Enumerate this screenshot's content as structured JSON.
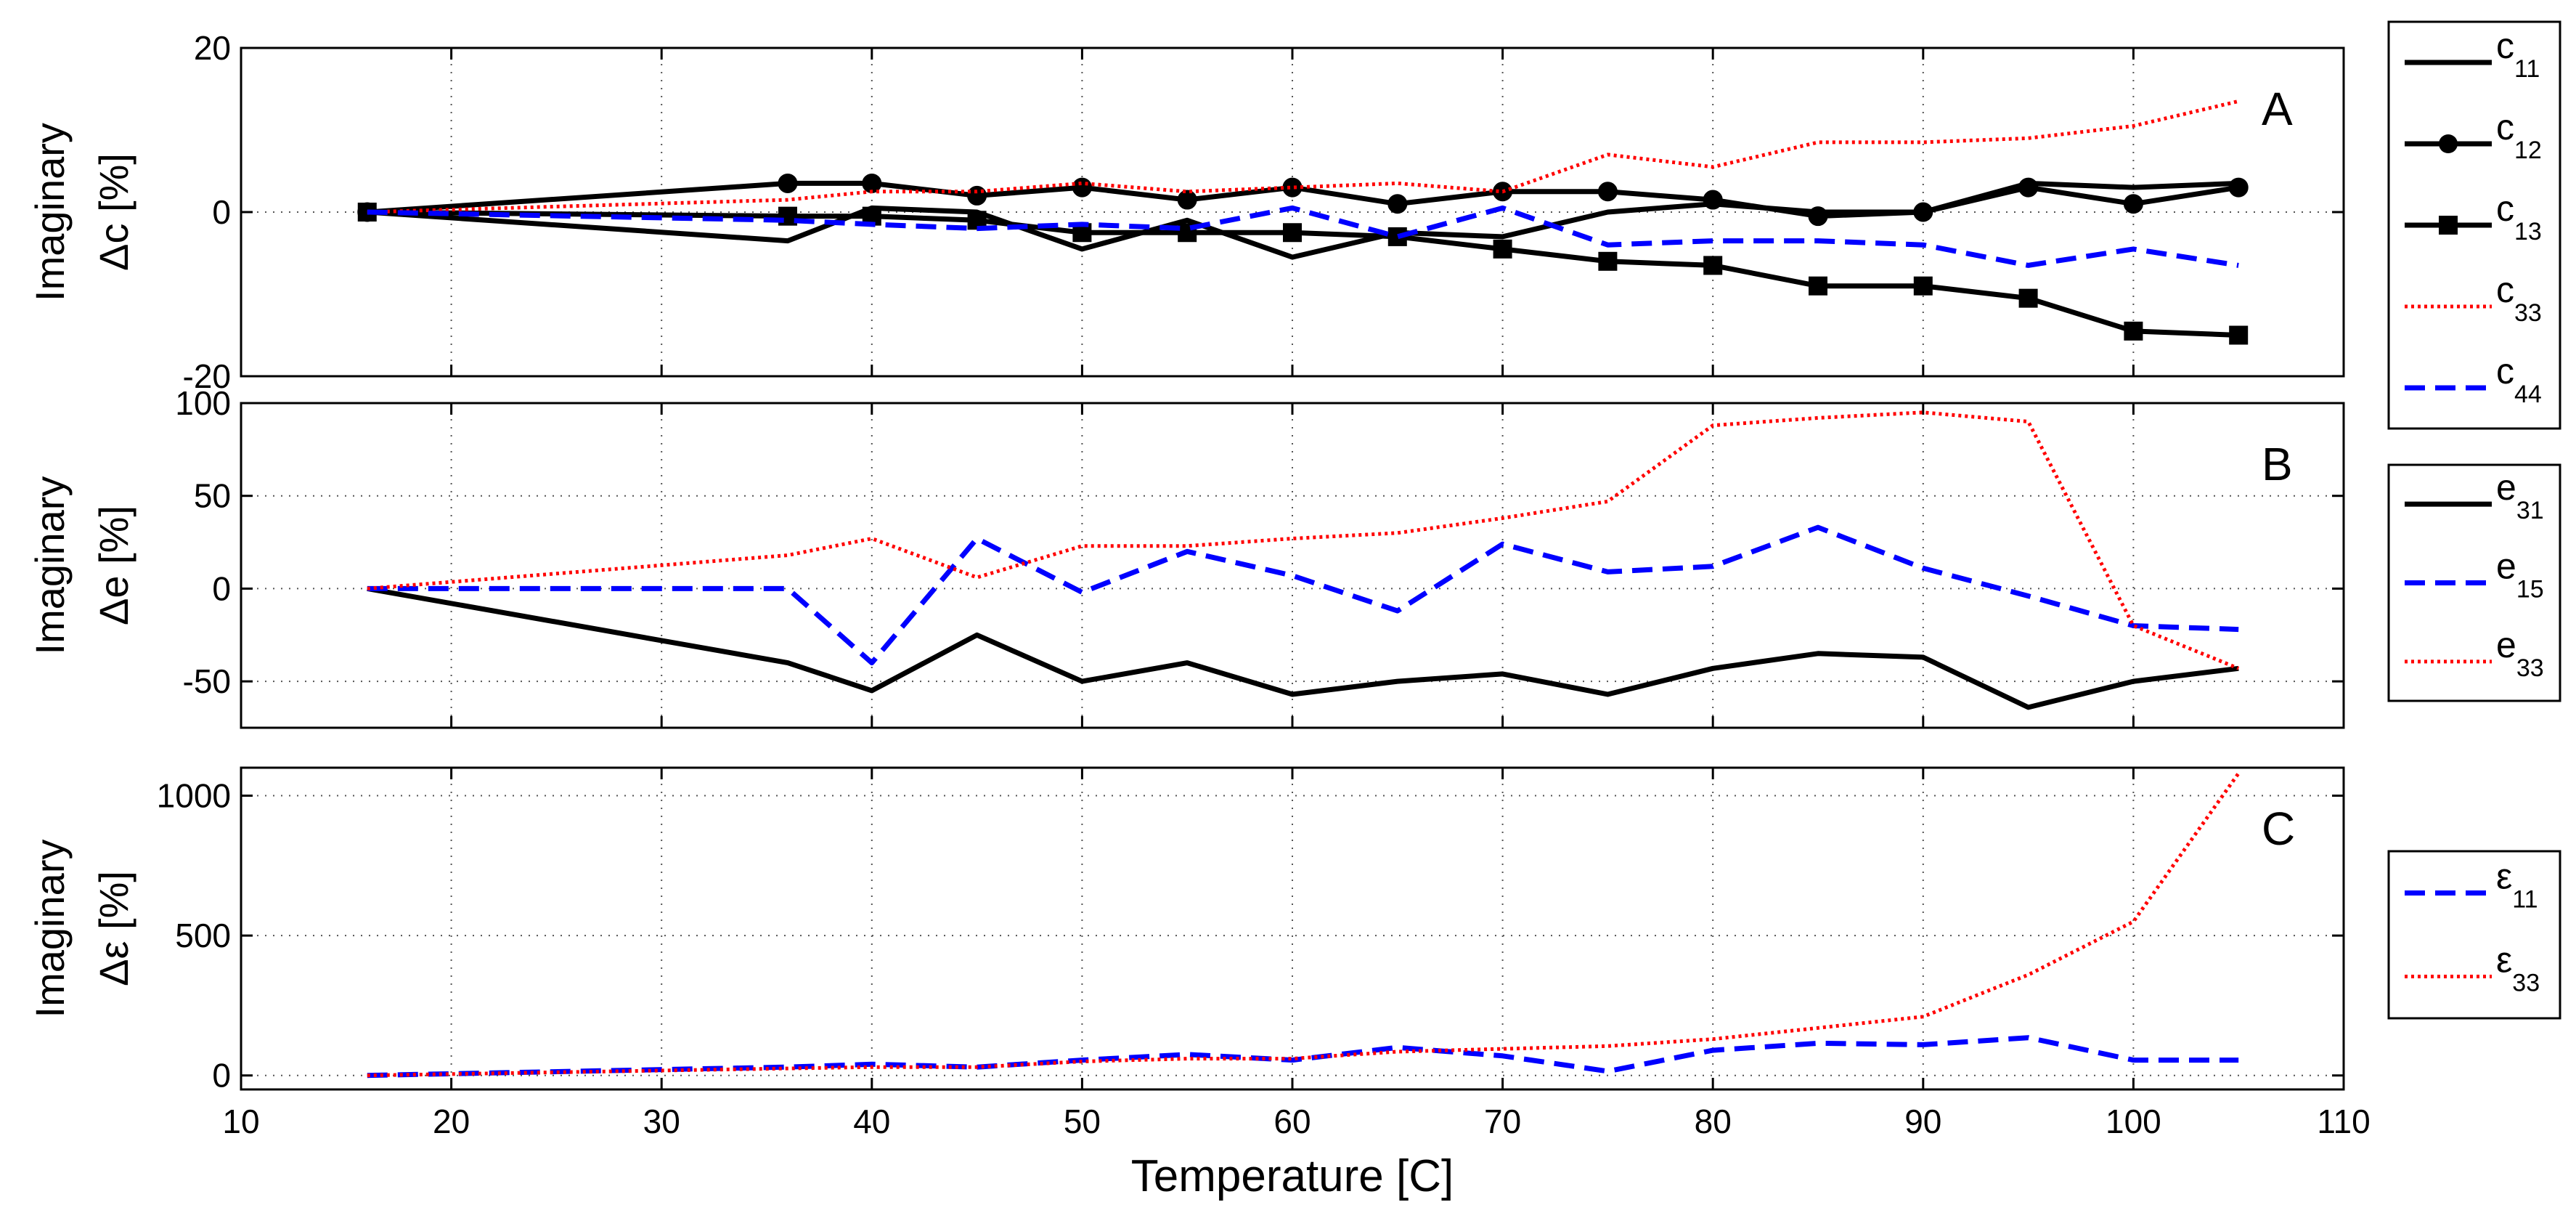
{
  "chart_data": [
    {
      "type": "line",
      "panel": "A",
      "ylabel_line1": "Imaginary",
      "ylabel_line2": "Δc [%]",
      "xlim": [
        10,
        110
      ],
      "ylim": [
        -20,
        20
      ],
      "yticks": [
        -20,
        0,
        20
      ],
      "legend": "outside-right",
      "grid": true,
      "series": [
        {
          "name": "c11",
          "base": "c",
          "sub": "11",
          "color": "#000000",
          "style": "solid",
          "marker": "none",
          "x": [
            16,
            36,
            40,
            45,
            50,
            55,
            60,
            65,
            70,
            75,
            80,
            85,
            90,
            95,
            100,
            105
          ],
          "y": [
            0,
            -3.5,
            0.5,
            0,
            -4.5,
            -1,
            -5.5,
            -2.5,
            -3,
            0,
            1,
            0,
            0,
            3.5,
            3,
            3.5
          ]
        },
        {
          "name": "c12",
          "base": "c",
          "sub": "12",
          "color": "#000000",
          "style": "solid",
          "marker": "circle",
          "x": [
            16,
            36,
            40,
            45,
            50,
            55,
            60,
            65,
            70,
            75,
            80,
            85,
            90,
            95,
            100,
            105
          ],
          "y": [
            0,
            3.5,
            3.5,
            2,
            3,
            1.5,
            3,
            1,
            2.5,
            2.5,
            1.5,
            -0.5,
            0,
            3,
            1,
            3
          ]
        },
        {
          "name": "c13",
          "base": "c",
          "sub": "13",
          "color": "#000000",
          "style": "solid",
          "marker": "square",
          "x": [
            16,
            36,
            40,
            45,
            50,
            55,
            60,
            65,
            70,
            75,
            80,
            85,
            90,
            95,
            100,
            105
          ],
          "y": [
            0,
            -0.5,
            -0.5,
            -1,
            -2.5,
            -2.5,
            -2.5,
            -3,
            -4.5,
            -6,
            -6.5,
            -9,
            -9,
            -10.5,
            -14.5,
            -15
          ]
        },
        {
          "name": "c33",
          "base": "c",
          "sub": "33",
          "color": "#ff0000",
          "style": "dotted",
          "marker": "none",
          "x": [
            16,
            36,
            40,
            45,
            50,
            55,
            60,
            65,
            70,
            75,
            80,
            85,
            90,
            95,
            100,
            105
          ],
          "y": [
            0,
            1.5,
            2.5,
            2.5,
            3.5,
            2.5,
            3,
            3.5,
            2.5,
            7,
            5.5,
            8.5,
            8.5,
            9,
            10.5,
            13.5
          ]
        },
        {
          "name": "c44",
          "base": "c",
          "sub": "44",
          "color": "#0000ff",
          "style": "dashed",
          "marker": "none",
          "x": [
            16,
            36,
            40,
            45,
            50,
            55,
            60,
            65,
            70,
            75,
            80,
            85,
            90,
            95,
            100,
            105
          ],
          "y": [
            0,
            -1,
            -1.5,
            -2,
            -1.5,
            -2,
            0.5,
            -3,
            0.5,
            -4,
            -3.5,
            -3.5,
            -4,
            -6.5,
            -4.5,
            -6.5
          ]
        }
      ]
    },
    {
      "type": "line",
      "panel": "B",
      "ylabel_line1": "Imaginary",
      "ylabel_line2": "Δe [%]",
      "xlim": [
        10,
        110
      ],
      "ylim": [
        -75,
        100
      ],
      "yticks": [
        -50,
        0,
        50,
        100
      ],
      "legend": "outside-right",
      "grid": true,
      "series": [
        {
          "name": "e31",
          "base": "e",
          "sub": "31",
          "color": "#000000",
          "style": "solid",
          "marker": "none",
          "x": [
            16,
            36,
            40,
            45,
            50,
            55,
            60,
            65,
            70,
            75,
            80,
            85,
            90,
            95,
            100,
            105
          ],
          "y": [
            0,
            -40,
            -55,
            -25,
            -50,
            -40,
            -57,
            -50,
            -46,
            -57,
            -43,
            -35,
            -37,
            -64,
            -50,
            -43
          ]
        },
        {
          "name": "e15",
          "base": "e",
          "sub": "15",
          "color": "#0000ff",
          "style": "dashed",
          "marker": "none",
          "x": [
            16,
            36,
            40,
            45,
            50,
            55,
            60,
            65,
            70,
            75,
            80,
            85,
            90,
            95,
            100,
            105
          ],
          "y": [
            0,
            0,
            -40,
            27,
            -2,
            20,
            7,
            -12,
            24,
            9,
            12,
            33,
            11,
            -4,
            -20,
            -22
          ]
        },
        {
          "name": "e33",
          "base": "e",
          "sub": "33",
          "color": "#ff0000",
          "style": "dotted",
          "marker": "none",
          "x": [
            16,
            36,
            40,
            45,
            50,
            55,
            60,
            65,
            70,
            75,
            80,
            85,
            90,
            95,
            100,
            105
          ],
          "y": [
            0,
            18,
            27,
            6,
            23,
            23,
            27,
            30,
            38,
            47,
            88,
            92,
            95,
            90,
            -20,
            -43
          ]
        }
      ]
    },
    {
      "type": "line",
      "panel": "C",
      "ylabel_line1": "Imaginary",
      "ylabel_line2": "Δε [%]",
      "xlabel": "Temperature [C]",
      "xlim": [
        10,
        110
      ],
      "ylim": [
        -50,
        1100
      ],
      "xticks": [
        10,
        20,
        30,
        40,
        50,
        60,
        70,
        80,
        90,
        100,
        110
      ],
      "yticks": [
        0,
        500,
        1000
      ],
      "legend": "outside-right",
      "grid": true,
      "series": [
        {
          "name": "ε11",
          "base": "ε",
          "sub": "11",
          "color": "#0000ff",
          "style": "dashed",
          "marker": "none",
          "x": [
            16,
            36,
            40,
            45,
            50,
            55,
            60,
            65,
            70,
            75,
            80,
            85,
            90,
            95,
            100,
            105
          ],
          "y": [
            0,
            30,
            40,
            30,
            55,
            75,
            55,
            100,
            70,
            15,
            90,
            115,
            110,
            135,
            55,
            55
          ]
        },
        {
          "name": "ε33",
          "base": "ε",
          "sub": "33",
          "color": "#ff0000",
          "style": "dotted",
          "marker": "none",
          "x": [
            16,
            36,
            40,
            45,
            50,
            55,
            60,
            65,
            70,
            75,
            80,
            85,
            90,
            95,
            100,
            105
          ],
          "y": [
            0,
            25,
            30,
            30,
            50,
            60,
            60,
            85,
            95,
            105,
            130,
            170,
            210,
            360,
            550,
            1080
          ]
        }
      ]
    }
  ]
}
